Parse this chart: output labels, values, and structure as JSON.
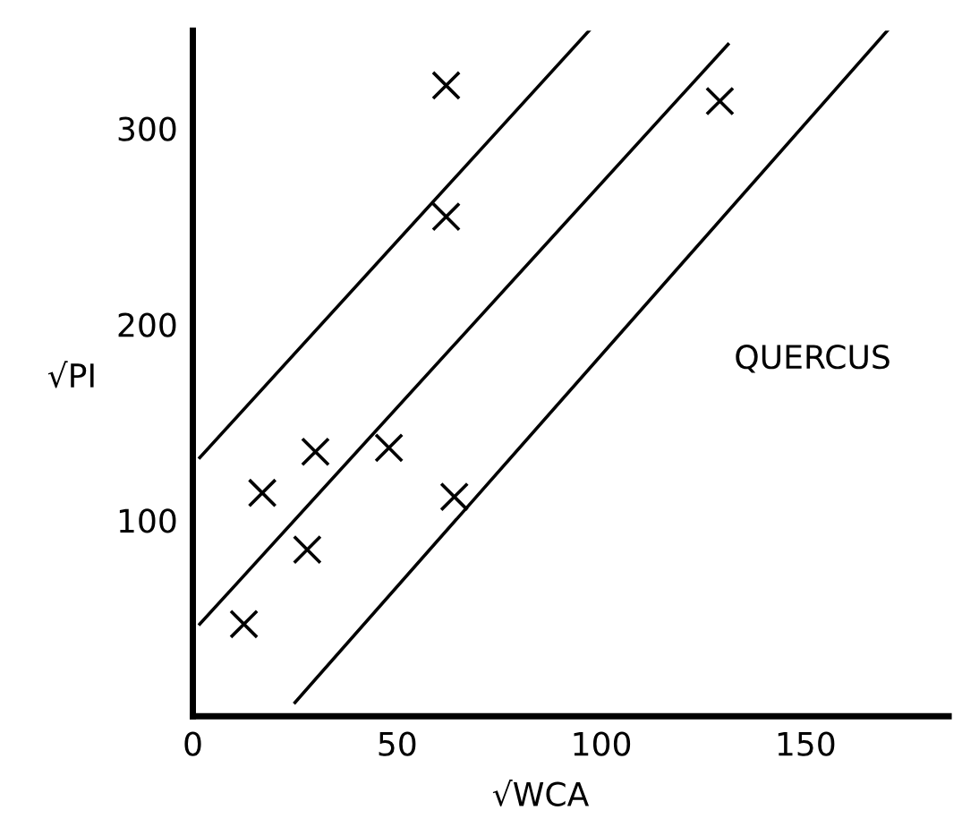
{
  "chart_data": {
    "type": "scatter",
    "xlabel": "√WCA",
    "ylabel": "√PI",
    "annotations": [
      "QUERCUS"
    ],
    "xlim": [
      0,
      185
    ],
    "ylim": [
      0,
      350
    ],
    "xticks": [
      0,
      50,
      100,
      150
    ],
    "yticks": [
      100,
      200,
      300
    ],
    "grid": false,
    "series": [
      {
        "marker": "cross",
        "color": "#000000",
        "x": [
          62,
          62,
          129,
          12.5,
          17,
          30,
          28,
          48,
          64
        ],
        "values": [
          322,
          255,
          314,
          47,
          114,
          135,
          85,
          137,
          112
        ]
      },
      {
        "type": "line",
        "marker": "none",
        "color": "#000000",
        "x": [
          1.7,
          97
        ],
        "values": [
          132,
          350
        ]
      },
      {
        "type": "line",
        "marker": "none",
        "color": "#000000",
        "x": [
          1.7,
          131
        ],
        "values": [
          47,
          343
        ]
      },
      {
        "type": "line",
        "marker": "none",
        "color": "#000000",
        "x": [
          25,
          170
        ],
        "values": [
          7,
          350
        ]
      }
    ]
  }
}
